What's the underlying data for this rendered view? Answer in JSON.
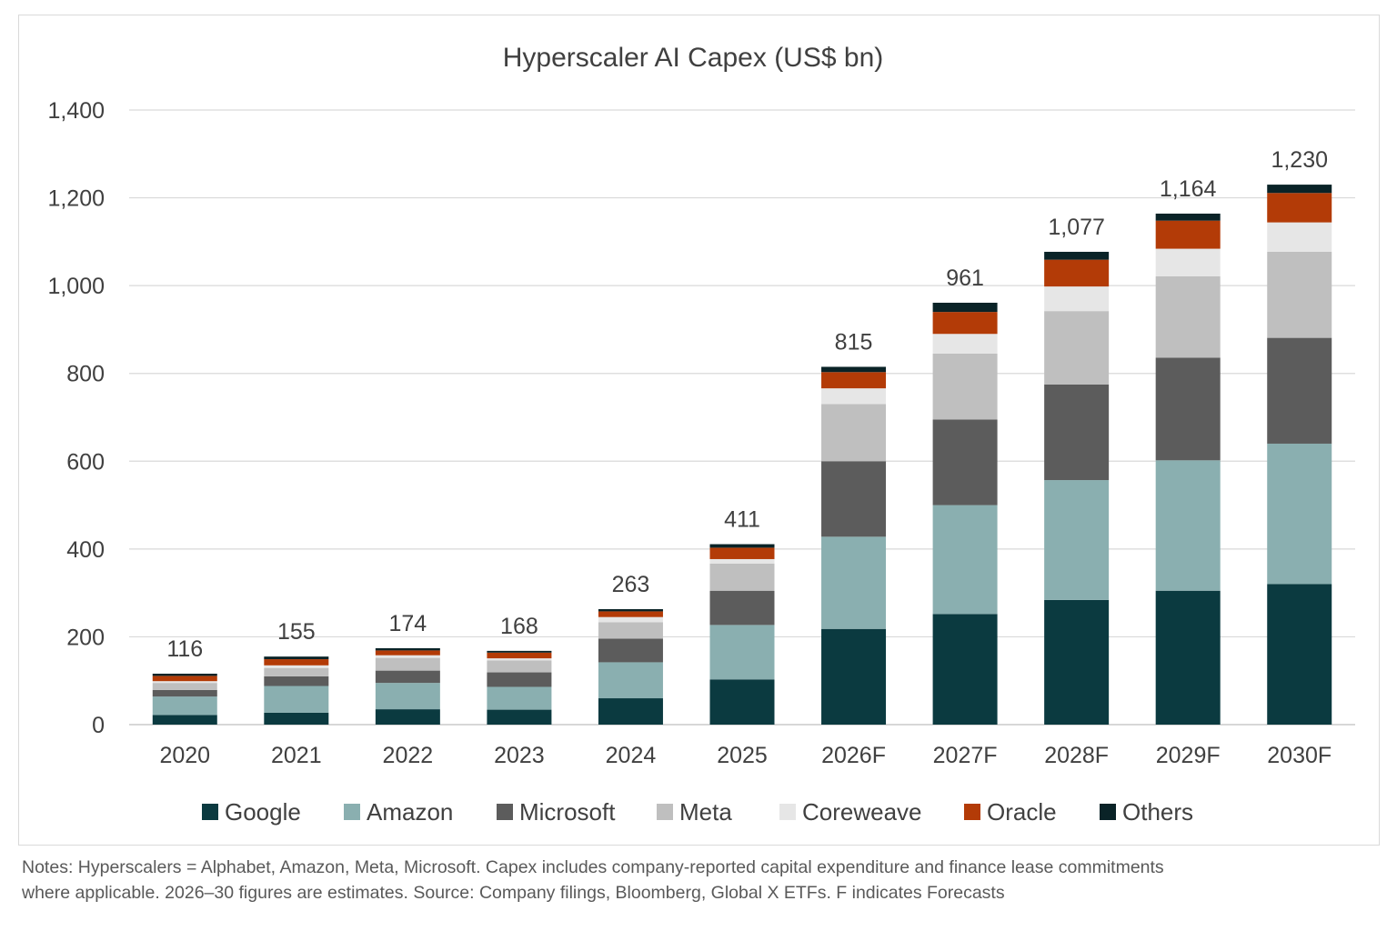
{
  "chart_data": {
    "type": "bar",
    "stacked": true,
    "title": "Hyperscaler AI Capex (US$ bn)",
    "xlabel": "",
    "ylabel": "",
    "ylim": [
      0,
      1400
    ],
    "yticks": [
      0,
      200,
      400,
      600,
      800,
      1000,
      1200,
      1400
    ],
    "ytick_labels": [
      "0",
      "200",
      "400",
      "600",
      "800",
      "1,000",
      "1,200",
      "1,400"
    ],
    "grid": true,
    "legend_position": "bottom",
    "categories": [
      "2020",
      "2021",
      "2022",
      "2023",
      "2024",
      "2025",
      "2026F",
      "2027F",
      "2028F",
      "2029F",
      "2030F"
    ],
    "totals": [
      116,
      155,
      174,
      168,
      263,
      411,
      815,
      961,
      1077,
      1164,
      1230
    ],
    "total_labels": [
      "116",
      "155",
      "174",
      "168",
      "263",
      "411",
      "815",
      "961",
      "1,077",
      "1,164",
      "1,230"
    ],
    "series": [
      {
        "name": "Google",
        "color": "#0b3a40",
        "values": [
          22,
          27,
          35,
          34,
          60,
          103,
          218,
          252,
          284,
          305,
          320
        ]
      },
      {
        "name": "Amazon",
        "color": "#8aafb0",
        "values": [
          42,
          61,
          60,
          52,
          82,
          124,
          210,
          248,
          273,
          297,
          320
        ]
      },
      {
        "name": "Microsoft",
        "color": "#5c5c5c",
        "values": [
          15,
          22,
          28,
          33,
          54,
          78,
          172,
          195,
          218,
          234,
          241
        ]
      },
      {
        "name": "Meta",
        "color": "#bfbfbf",
        "values": [
          16,
          19,
          29,
          27,
          37,
          62,
          130,
          150,
          167,
          185,
          196
        ]
      },
      {
        "name": "Coreweave",
        "color": "#e6e6e6",
        "values": [
          4,
          6,
          6,
          5,
          12,
          10,
          36,
          45,
          56,
          63,
          67
        ]
      },
      {
        "name": "Oracle",
        "color": "#b33b07",
        "values": [
          12,
          14,
          11,
          13,
          13,
          26,
          37,
          50,
          61,
          64,
          67
        ]
      },
      {
        "name": "Others",
        "color": "#0a2327",
        "values": [
          5,
          6,
          5,
          4,
          5,
          8,
          12,
          21,
          18,
          16,
          19
        ]
      }
    ]
  },
  "notes": {
    "line1": "Notes: Hyperscalers = Alphabet, Amazon, Meta, Microsoft. Capex includes company-reported capital expenditure and finance lease commitments",
    "line2": "where applicable. 2026–30 figures are estimates. Source: Company filings, Bloomberg, Global X ETFs. F indicates Forecasts"
  }
}
